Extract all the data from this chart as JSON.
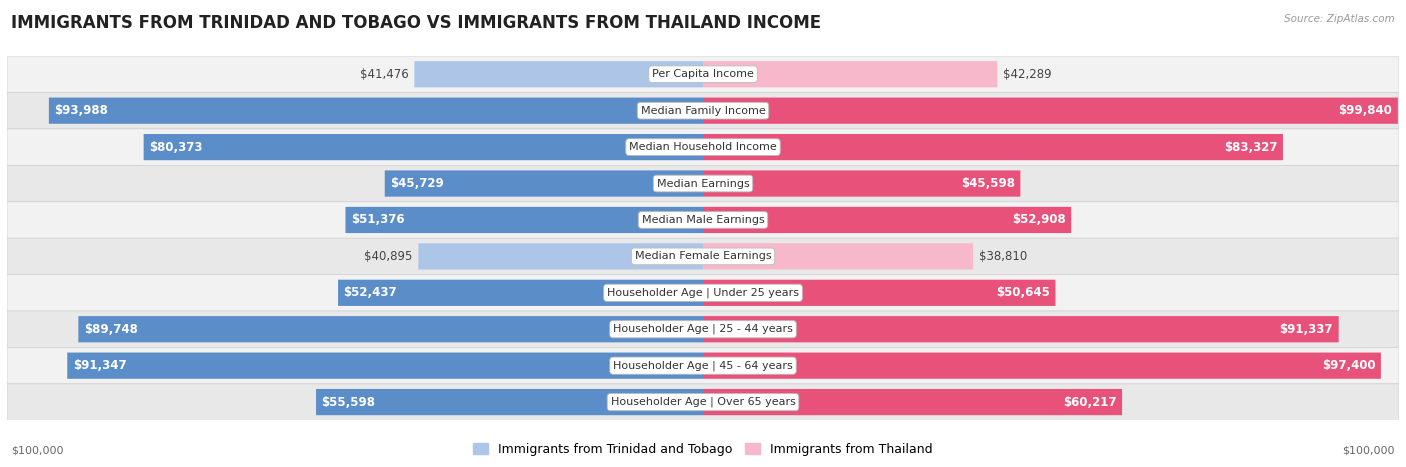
{
  "title": "IMMIGRANTS FROM TRINIDAD AND TOBAGO VS IMMIGRANTS FROM THAILAND INCOME",
  "source": "Source: ZipAtlas.com",
  "categories": [
    "Per Capita Income",
    "Median Family Income",
    "Median Household Income",
    "Median Earnings",
    "Median Male Earnings",
    "Median Female Earnings",
    "Householder Age | Under 25 years",
    "Householder Age | 25 - 44 years",
    "Householder Age | 45 - 64 years",
    "Householder Age | Over 65 years"
  ],
  "left_values": [
    41476,
    93988,
    80373,
    45729,
    51376,
    40895,
    52437,
    89748,
    91347,
    55598
  ],
  "right_values": [
    42289,
    99840,
    83327,
    45598,
    52908,
    38810,
    50645,
    91337,
    97400,
    60217
  ],
  "left_labels": [
    "$41,476",
    "$93,988",
    "$80,373",
    "$45,729",
    "$51,376",
    "$40,895",
    "$52,437",
    "$89,748",
    "$91,347",
    "$55,598"
  ],
  "right_labels": [
    "$42,289",
    "$99,840",
    "$83,327",
    "$45,598",
    "$52,908",
    "$38,810",
    "$50,645",
    "$91,337",
    "$97,400",
    "$60,217"
  ],
  "left_color_light": "#adc6e8",
  "left_color_dark": "#5b8dc8",
  "right_color_light": "#f7b8cc",
  "right_color_dark": "#e8527a",
  "left_legend": "Immigrants from Trinidad and Tobago",
  "right_legend": "Immigrants from Thailand",
  "max_value": 100000,
  "row_bg_odd": "#f2f2f2",
  "row_bg_even": "#e8e8e8",
  "title_fontsize": 12,
  "label_fontsize": 8.5,
  "category_fontsize": 8,
  "axis_label": "$100,000",
  "large_threshold": 0.45
}
